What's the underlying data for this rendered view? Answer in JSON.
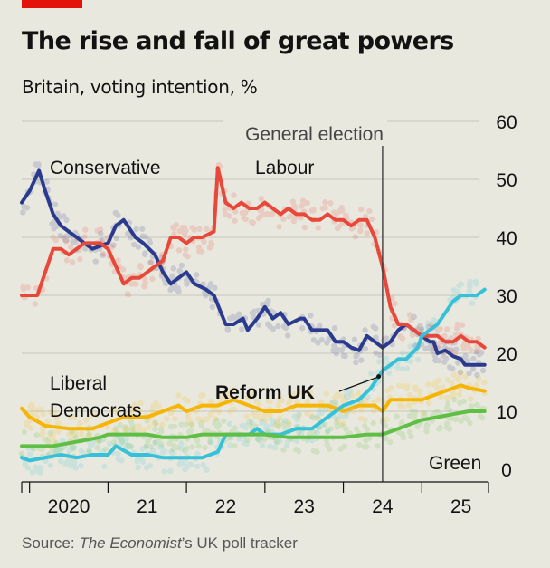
{
  "title": "The rise and fall of great powers",
  "subtitle": "Britain, voting intention, %",
  "source": {
    "prefix": "Source: ",
    "publication": "The Economist",
    "suffix": "’s UK poll tracker"
  },
  "colors": {
    "background": "#e9e8de",
    "accent_red": "#e3120b",
    "Conservative": "#2a3a8e",
    "Labour": "#e8483a",
    "Liberal Democrats": "#f6b500",
    "Reform UK": "#36c1d8",
    "Green": "#5fbf45"
  },
  "chart_data": {
    "type": "line",
    "title": "The rise and fall of great powers",
    "subtitle": "Britain, voting intention, %",
    "ylim": [
      0,
      60
    ],
    "y_ticks": [
      0,
      10,
      20,
      30,
      40,
      50,
      60
    ],
    "xlim": [
      2019.9,
      2025.85
    ],
    "x_tick_positions": [
      2020,
      2021,
      2022,
      2023,
      2024,
      2025
    ],
    "x_tick_labels": [
      "2020",
      "21",
      "22",
      "23",
      "24",
      "25"
    ],
    "grid": true,
    "y_axis_position": "right",
    "annotations": [
      {
        "text": "General election",
        "x": 2024.5
      }
    ],
    "series": [
      {
        "name": "Conservative",
        "label_lines": [
          "Conservative"
        ],
        "color": "#2a3a8e",
        "x": [
          2019.9,
          2020.0,
          2020.12,
          2020.2,
          2020.3,
          2020.4,
          2020.5,
          2020.6,
          2020.7,
          2020.8,
          2021.0,
          2021.1,
          2021.2,
          2021.35,
          2021.45,
          2021.6,
          2021.7,
          2021.8,
          2021.9,
          2022.0,
          2022.1,
          2022.25,
          2022.35,
          2022.5,
          2022.6,
          2022.72,
          2022.78,
          2022.9,
          2023.0,
          2023.1,
          2023.2,
          2023.3,
          2023.45,
          2023.5,
          2023.6,
          2023.7,
          2023.8,
          2023.9,
          2024.0,
          2024.1,
          2024.2,
          2024.3,
          2024.4,
          2024.5,
          2024.6,
          2024.7,
          2024.8,
          2024.9,
          2025.0,
          2025.1,
          2025.15,
          2025.2,
          2025.3,
          2025.4,
          2025.5,
          2025.55,
          2025.7,
          2025.8
        ],
        "values": [
          46,
          48,
          51.5,
          48,
          44,
          42,
          41,
          40,
          39,
          38,
          39,
          42,
          43,
          40,
          39,
          37,
          34,
          32,
          33,
          34,
          32,
          31,
          30,
          25,
          25,
          26,
          24,
          26,
          28,
          26,
          27,
          25,
          26,
          26,
          24,
          24,
          24,
          22,
          22,
          21,
          20.5,
          23,
          22,
          21,
          22,
          24,
          25,
          24,
          23,
          22,
          22,
          20,
          20.5,
          19.5,
          19,
          18,
          18,
          18
        ]
      },
      {
        "name": "Labour",
        "label_lines": [
          "Labour"
        ],
        "color": "#e8483a",
        "x": [
          2019.9,
          2020.0,
          2020.1,
          2020.2,
          2020.3,
          2020.4,
          2020.5,
          2020.6,
          2020.7,
          2020.8,
          2020.9,
          2021.0,
          2021.1,
          2021.2,
          2021.3,
          2021.4,
          2021.5,
          2021.6,
          2021.7,
          2021.8,
          2021.9,
          2022.0,
          2022.1,
          2022.2,
          2022.35,
          2022.4,
          2022.5,
          2022.6,
          2022.7,
          2022.8,
          2022.9,
          2023.0,
          2023.1,
          2023.2,
          2023.3,
          2023.4,
          2023.5,
          2023.6,
          2023.7,
          2023.8,
          2023.9,
          2024.0,
          2024.1,
          2024.2,
          2024.3,
          2024.4,
          2024.5,
          2024.6,
          2024.7,
          2024.8,
          2024.9,
          2025.0,
          2025.1,
          2025.2,
          2025.3,
          2025.4,
          2025.5,
          2025.6,
          2025.7,
          2025.8
        ],
        "values": [
          30,
          30,
          30,
          34,
          38,
          38,
          37,
          38,
          39,
          39,
          39,
          38,
          35,
          32,
          33,
          33,
          34,
          35,
          36,
          40,
          40,
          39,
          40,
          40,
          41,
          52,
          46,
          45,
          46,
          45,
          45,
          46,
          45,
          44,
          45,
          44,
          44,
          43,
          43,
          44,
          43,
          43,
          42,
          43,
          43,
          40,
          35,
          28,
          25,
          25,
          24,
          23,
          23,
          23,
          22,
          22,
          23,
          22,
          22,
          21
        ]
      },
      {
        "name": "Liberal Democrats",
        "label_lines": [
          "Liberal",
          "Democrats"
        ],
        "color": "#f6b500",
        "x": [
          2019.9,
          2020.0,
          2020.2,
          2020.5,
          2020.8,
          2021.0,
          2021.2,
          2021.5,
          2021.7,
          2021.9,
          2022.0,
          2022.2,
          2022.4,
          2022.6,
          2022.8,
          2023.0,
          2023.2,
          2023.4,
          2023.6,
          2023.8,
          2024.0,
          2024.2,
          2024.4,
          2024.5,
          2024.6,
          2024.8,
          2025.0,
          2025.2,
          2025.4,
          2025.5,
          2025.6,
          2025.8
        ],
        "values": [
          10.5,
          9,
          7.5,
          7,
          7,
          8,
          9,
          9,
          10,
          11,
          10,
          11,
          11,
          12,
          11,
          10,
          10,
          11,
          11,
          11,
          10,
          11,
          11,
          10,
          12,
          12,
          12,
          13,
          14,
          14.5,
          14,
          13.5
        ]
      },
      {
        "name": "Reform UK",
        "label_lines": [
          "Reform UK"
        ],
        "color": "#36c1d8",
        "x": [
          2019.9,
          2020.0,
          2020.2,
          2020.4,
          2020.6,
          2020.8,
          2021.0,
          2021.1,
          2021.3,
          2021.5,
          2021.7,
          2021.9,
          2022.0,
          2022.2,
          2022.4,
          2022.5,
          2022.6,
          2022.8,
          2022.9,
          2023.0,
          2023.2,
          2023.4,
          2023.6,
          2023.8,
          2024.0,
          2024.2,
          2024.35,
          2024.45,
          2024.5,
          2024.6,
          2024.7,
          2024.8,
          2024.95,
          2025.0,
          2025.1,
          2025.2,
          2025.3,
          2025.4,
          2025.5,
          2025.6,
          2025.7,
          2025.8
        ],
        "values": [
          2,
          1.5,
          2,
          2.5,
          2,
          2.5,
          2.5,
          4,
          2.5,
          2.5,
          2,
          2,
          2,
          2,
          3,
          6,
          6,
          6,
          7,
          6,
          6,
          7,
          7,
          9,
          11,
          12,
          14,
          16,
          17,
          18,
          19,
          19,
          21,
          23,
          24,
          25,
          27,
          29,
          30,
          30,
          30,
          31
        ]
      },
      {
        "name": "Green",
        "label_lines": [
          "Green"
        ],
        "color": "#5fbf45",
        "x": [
          2019.9,
          2020.0,
          2020.3,
          2020.5,
          2020.7,
          2020.9,
          2021.0,
          2021.2,
          2021.5,
          2021.7,
          2021.9,
          2022.0,
          2022.2,
          2022.5,
          2022.8,
          2023.0,
          2023.3,
          2023.6,
          2023.9,
          2024.0,
          2024.3,
          2024.5,
          2024.7,
          2024.9,
          2025.0,
          2025.2,
          2025.4,
          2025.6,
          2025.8
        ],
        "values": [
          4,
          4,
          4,
          4.5,
          5,
          5.5,
          6,
          6,
          6,
          5.5,
          5.5,
          5.5,
          6,
          6,
          6,
          6,
          5.5,
          5.5,
          5.5,
          5.5,
          6,
          6,
          7,
          8,
          8.5,
          9,
          9.5,
          10,
          10
        ]
      }
    ]
  }
}
